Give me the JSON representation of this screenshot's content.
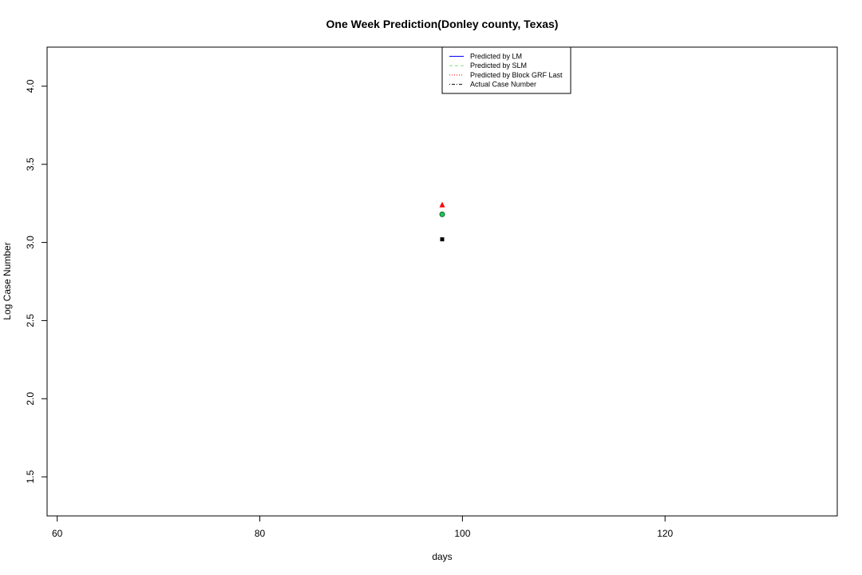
{
  "chart_data": {
    "type": "scatter",
    "title": "One Week Prediction(Donley county, Texas)",
    "xlabel": "days",
    "ylabel": "Log Case Number",
    "xlim": [
      59,
      137
    ],
    "ylim": [
      1.25,
      4.25
    ],
    "xticks": [
      60,
      80,
      100,
      120
    ],
    "yticks": [
      1.5,
      2.0,
      2.5,
      3.0,
      3.5,
      4.0
    ],
    "xtick_labels": [
      "60",
      "80",
      "100",
      "120"
    ],
    "ytick_labels": [
      "1.5",
      "2.0",
      "2.5",
      "3.0",
      "3.5",
      "4.0"
    ],
    "legend_position": "top-center",
    "series": [
      {
        "name": "Predicted by LM",
        "line": "solid",
        "color": "#0000ff",
        "marker": "none",
        "x": [
          98
        ],
        "y": [
          3.18
        ]
      },
      {
        "name": "Predicted by SLM",
        "line": "dashed",
        "color": "#7fe07f",
        "marker": "circle",
        "x": [
          98
        ],
        "y": [
          3.18
        ]
      },
      {
        "name": "Predicted by Block GRF Last",
        "line": "dotted",
        "color": "#ff0000",
        "marker": "triangle",
        "x": [
          98
        ],
        "y": [
          3.24
        ]
      },
      {
        "name": "Actual Case Number",
        "line": "dotdash",
        "color": "#000000",
        "marker": "square",
        "x": [
          98
        ],
        "y": [
          3.02
        ]
      }
    ]
  }
}
